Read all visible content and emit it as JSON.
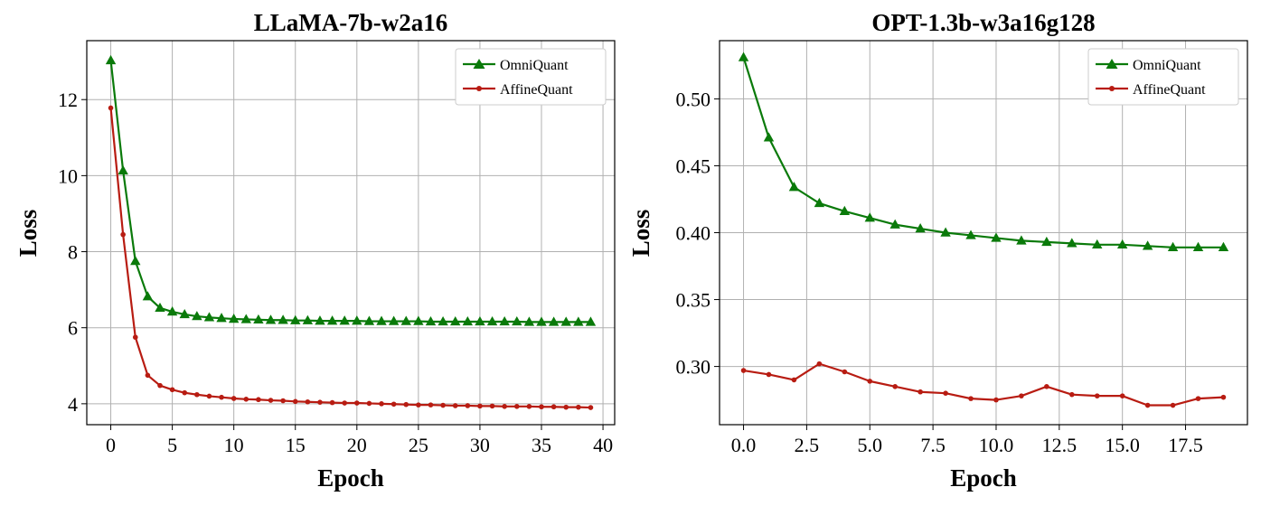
{
  "chart_data": [
    {
      "type": "line",
      "title": "LLaMA-7b-w2a16",
      "xlabel": "Epoch",
      "ylabel": "Loss",
      "xlim": [
        -1.95,
        40.95
      ],
      "ylim": [
        3.45,
        13.55
      ],
      "xticks": [
        0,
        5,
        10,
        15,
        20,
        25,
        30,
        35,
        40
      ],
      "xtick_labels": [
        "0",
        "5",
        "10",
        "15",
        "20",
        "25",
        "30",
        "35",
        "40"
      ],
      "yticks": [
        4,
        6,
        8,
        10,
        12
      ],
      "ytick_labels": [
        "4",
        "6",
        "8",
        "10",
        "12"
      ],
      "grid": true,
      "legend": "top-right",
      "x": [
        0,
        1,
        2,
        3,
        4,
        5,
        6,
        7,
        8,
        9,
        10,
        11,
        12,
        13,
        14,
        15,
        16,
        17,
        18,
        19,
        20,
        21,
        22,
        23,
        24,
        25,
        26,
        27,
        28,
        29,
        30,
        31,
        32,
        33,
        34,
        35,
        36,
        37,
        38,
        39
      ],
      "series": [
        {
          "name": "OmniQuant",
          "color": "#0a7a0a",
          "marker": "triangle",
          "values": [
            13.03,
            10.13,
            7.75,
            6.82,
            6.52,
            6.42,
            6.35,
            6.3,
            6.27,
            6.25,
            6.23,
            6.22,
            6.21,
            6.2,
            6.2,
            6.19,
            6.19,
            6.18,
            6.18,
            6.18,
            6.18,
            6.17,
            6.17,
            6.17,
            6.17,
            6.17,
            6.16,
            6.16,
            6.16,
            6.16,
            6.16,
            6.16,
            6.16,
            6.16,
            6.15,
            6.15,
            6.15,
            6.15,
            6.15,
            6.15
          ]
        },
        {
          "name": "AffineQuant",
          "color": "#b81c12",
          "marker": "circle",
          "values": [
            11.78,
            8.45,
            5.75,
            4.75,
            4.48,
            4.37,
            4.29,
            4.24,
            4.2,
            4.17,
            4.14,
            4.12,
            4.11,
            4.09,
            4.08,
            4.06,
            4.05,
            4.04,
            4.03,
            4.02,
            4.02,
            4.01,
            4.0,
            3.99,
            3.98,
            3.97,
            3.97,
            3.96,
            3.95,
            3.95,
            3.94,
            3.94,
            3.93,
            3.93,
            3.93,
            3.92,
            3.92,
            3.91,
            3.91,
            3.9
          ]
        }
      ]
    },
    {
      "type": "line",
      "title": "OPT-1.3b-w3a16g128",
      "xlabel": "Epoch",
      "ylabel": "Loss",
      "xlim": [
        -0.95,
        19.95
      ],
      "ylim": [
        0.2565,
        0.5435
      ],
      "xticks": [
        0,
        2.5,
        5,
        7.5,
        10,
        12.5,
        15,
        17.5
      ],
      "xtick_labels": [
        "0.0",
        "2.5",
        "5.0",
        "7.5",
        "10.0",
        "12.5",
        "15.0",
        "17.5"
      ],
      "yticks": [
        0.3,
        0.35,
        0.4,
        0.45,
        0.5
      ],
      "ytick_labels": [
        "0.30",
        "0.35",
        "0.40",
        "0.45",
        "0.50"
      ],
      "grid": true,
      "legend": "top-right",
      "x": [
        0,
        1,
        2,
        3,
        4,
        5,
        6,
        7,
        8,
        9,
        10,
        11,
        12,
        13,
        14,
        15,
        16,
        17,
        18,
        19
      ],
      "series": [
        {
          "name": "OmniQuant",
          "color": "#0a7a0a",
          "marker": "triangle",
          "values": [
            0.531,
            0.471,
            0.434,
            0.422,
            0.416,
            0.411,
            0.406,
            0.403,
            0.4,
            0.398,
            0.396,
            0.394,
            0.393,
            0.392,
            0.391,
            0.391,
            0.39,
            0.389,
            0.389,
            0.389
          ]
        },
        {
          "name": "AffineQuant",
          "color": "#b81c12",
          "marker": "circle",
          "values": [
            0.297,
            0.294,
            0.29,
            0.302,
            0.296,
            0.289,
            0.285,
            0.281,
            0.28,
            0.276,
            0.275,
            0.278,
            0.285,
            0.279,
            0.278,
            0.278,
            0.271,
            0.271,
            0.276,
            0.277
          ]
        }
      ]
    }
  ]
}
